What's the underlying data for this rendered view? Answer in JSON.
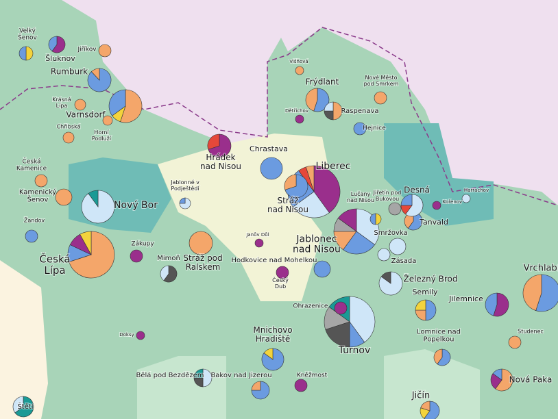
{
  "map": {
    "places": [
      {
        "name": [
          "Velký",
          "Šenov"
        ],
        "slices": [
          {
            "color": "#f3d33c",
            "value": 50
          },
          {
            "color": "#6b9be0",
            "value": 50
          }
        ]
      },
      {
        "name": [
          "Šluknov"
        ],
        "slices": [
          {
            "color": "#9a2f8c",
            "value": 60
          },
          {
            "color": "#6b9be0",
            "value": 40
          }
        ]
      },
      {
        "name": [
          "Jiříkov"
        ],
        "slices": [
          {
            "color": "#f4a66a",
            "value": 100
          }
        ]
      },
      {
        "name": [
          "Rumburk"
        ],
        "slices": [
          {
            "color": "#6b9be0",
            "value": 88
          },
          {
            "color": "#f4a66a",
            "value": 12
          }
        ]
      },
      {
        "name": [
          "Krásná",
          "Lípa"
        ],
        "slices": [
          {
            "color": "#f4a66a",
            "value": 100
          }
        ]
      },
      {
        "name": [
          "Varnsdorf"
        ],
        "slices": [
          {
            "color": "#f4a66a",
            "value": 55
          },
          {
            "color": "#f3d33c",
            "value": 10
          },
          {
            "color": "#6b9be0",
            "value": 35
          }
        ]
      },
      {
        "name": [
          "Chřibská"
        ],
        "slices": [
          {
            "color": "#f4a66a",
            "value": 100
          }
        ]
      },
      {
        "name": [
          "Horní",
          "Podluží"
        ],
        "slices": [
          {
            "color": "#f4a66a",
            "value": 100
          }
        ]
      },
      {
        "name": [
          "Hrádek",
          "nad Nisou"
        ],
        "slices": [
          {
            "color": "#9a2f8c",
            "value": 70
          },
          {
            "color": "#e5483a",
            "value": 30
          }
        ]
      },
      {
        "name": [
          "Chrastava"
        ],
        "slices": [
          {
            "color": "#6b9be0",
            "value": 100
          }
        ]
      },
      {
        "name": [
          "Liberec"
        ],
        "slices": [
          {
            "color": "#9a2f8c",
            "value": 40
          },
          {
            "color": "#cfe6f8",
            "value": 25
          },
          {
            "color": "#6b9be0",
            "value": 25
          },
          {
            "color": "#e5483a",
            "value": 5
          },
          {
            "color": "#f4a66a",
            "value": 5
          }
        ]
      },
      {
        "name": [
          "Stráž",
          "nad Nisou"
        ],
        "slices": [
          {
            "color": "#6b9be0",
            "value": 70
          },
          {
            "color": "#f4a66a",
            "value": 30
          }
        ]
      },
      {
        "name": [
          "Jablonec",
          "nad Nisou"
        ],
        "slices": [
          {
            "color": "#cfe6f8",
            "value": 35
          },
          {
            "color": "#6b9be0",
            "value": 25
          },
          {
            "color": "#f4a66a",
            "value": 15
          },
          {
            "color": "#a6a6a6",
            "value": 10
          },
          {
            "color": "#9a2f8c",
            "value": 15
          }
        ]
      },
      {
        "name": [
          "Frýdlant"
        ],
        "slices": [
          {
            "color": "#6b9be0",
            "value": 55
          },
          {
            "color": "#f4a66a",
            "value": 45
          }
        ]
      },
      {
        "name": [
          "Raspenava"
        ],
        "slices": [
          {
            "color": "#f4a66a",
            "value": 50
          },
          {
            "color": "#555555",
            "value": 25
          },
          {
            "color": "#cfe6f8",
            "value": 25
          }
        ]
      },
      {
        "name": [
          "Hejnice"
        ],
        "slices": [
          {
            "color": "#6b9be0",
            "value": 100
          }
        ]
      },
      {
        "name": [
          "Nové Město",
          "pod Smrkem"
        ],
        "slices": [
          {
            "color": "#f4a66a",
            "value": 100
          }
        ]
      },
      {
        "name": [
          "Višňová"
        ],
        "slices": [
          {
            "color": "#f4a66a",
            "value": 100
          }
        ]
      },
      {
        "name": [
          "Dětřichov"
        ],
        "slices": [
          {
            "color": "#9a2f8c",
            "value": 100
          }
        ]
      },
      {
        "name": [
          "Nový Bor"
        ],
        "slices": [
          {
            "color": "#cfe6f8",
            "value": 90
          },
          {
            "color": "#1a9a95",
            "value": 10
          }
        ]
      },
      {
        "name": [
          "Česká",
          "Lípa"
        ],
        "slices": [
          {
            "color": "#f4a66a",
            "value": 70
          },
          {
            "color": "#6b9be0",
            "value": 12
          },
          {
            "color": "#9a2f8c",
            "value": 10
          },
          {
            "color": "#f3d33c",
            "value": 8
          }
        ]
      },
      {
        "name": [
          "Zákupy"
        ],
        "slices": [
          {
            "color": "#9a2f8c",
            "value": 100
          }
        ]
      },
      {
        "name": [
          "Mimoň"
        ],
        "slices": [
          {
            "color": "#555555",
            "value": 60
          },
          {
            "color": "#cfe6f8",
            "value": 40
          }
        ]
      },
      {
        "name": [
          "Stráž pod",
          "Ralskem"
        ],
        "slices": [
          {
            "color": "#f4a66a",
            "value": 100
          }
        ]
      },
      {
        "name": [
          "Turnov"
        ],
        "slices": [
          {
            "color": "#cfe6f8",
            "value": 40
          },
          {
            "color": "#6b9be0",
            "value": 10
          },
          {
            "color": "#555555",
            "value": 20
          },
          {
            "color": "#a6a6a6",
            "value": 15
          },
          {
            "color": "#1a9a95",
            "value": 15
          }
        ]
      },
      {
        "name": [
          "Mnichovo",
          "Hradiště"
        ],
        "slices": [
          {
            "color": "#6b9be0",
            "value": 85
          },
          {
            "color": "#f3d33c",
            "value": 15
          }
        ]
      },
      {
        "name": [
          "Semily"
        ],
        "slices": [
          {
            "color": "#6b9be0",
            "value": 50
          },
          {
            "color": "#f4a66a",
            "value": 25
          },
          {
            "color": "#f3d33c",
            "value": 25
          }
        ]
      },
      {
        "name": [
          "Jilemnice"
        ],
        "slices": [
          {
            "color": "#9a2f8c",
            "value": 55
          },
          {
            "color": "#6b9be0",
            "value": 45
          }
        ]
      },
      {
        "name": [
          "Vrchlabí"
        ],
        "slices": [
          {
            "color": "#6b9be0",
            "value": 55
          },
          {
            "color": "#f4a66a",
            "value": 45
          }
        ]
      },
      {
        "name": [
          "Tanvald"
        ],
        "slices": [
          {
            "color": "#6b9be0",
            "value": 60
          },
          {
            "color": "#f4a66a",
            "value": 40
          }
        ]
      },
      {
        "name": [
          "Desná"
        ],
        "slices": [
          {
            "color": "#cfe6f8",
            "value": 60
          },
          {
            "color": "#e5483a",
            "value": 15
          },
          {
            "color": "#6b9be0",
            "value": 25
          }
        ]
      },
      {
        "name": [
          "Smržovka"
        ],
        "slices": [
          {
            "color": "#cfe6f8",
            "value": 100
          }
        ]
      },
      {
        "name": [
          "Železný Brod"
        ],
        "slices": [
          {
            "color": "#cfe6f8",
            "value": 85
          },
          {
            "color": "#555555",
            "value": 15
          }
        ]
      },
      {
        "name": [
          "Hodkovice nad Mohelkou"
        ],
        "slices": [
          {
            "color": "#6b9be0",
            "value": 100
          }
        ]
      },
      {
        "name": [
          "Český",
          "Dub"
        ],
        "slices": [
          {
            "color": "#9a2f8c",
            "value": 100
          }
        ]
      },
      {
        "name": [
          "Jičín"
        ],
        "slices": [
          {
            "color": "#6b9be0",
            "value": 60
          },
          {
            "color": "#f3d33c",
            "value": 20
          },
          {
            "color": "#f4a66a",
            "value": 20
          }
        ]
      },
      {
        "name": [
          "Nová Paka"
        ],
        "slices": [
          {
            "color": "#f4a66a",
            "value": 60
          },
          {
            "color": "#9a2f8c",
            "value": 25
          },
          {
            "color": "#6b9be0",
            "value": 15
          }
        ]
      },
      {
        "name": [
          "Bělá pod Bezdězem"
        ],
        "slices": [
          {
            "color": "#cfe6f8",
            "value": 50
          },
          {
            "color": "#555555",
            "value": 25
          },
          {
            "color": "#1a9a95",
            "value": 25
          }
        ]
      },
      {
        "name": [
          "Bakov nad Jizerou"
        ],
        "slices": [
          {
            "color": "#6b9be0",
            "value": 75
          },
          {
            "color": "#f4a66a",
            "value": 25
          }
        ]
      },
      {
        "name": [
          "Kněžmost"
        ],
        "slices": [
          {
            "color": "#9a2f8c",
            "value": 100
          }
        ]
      },
      {
        "name": [
          "Lomnice nad",
          "Popelkou"
        ],
        "slices": [
          {
            "color": "#6b9be0",
            "value": 60
          },
          {
            "color": "#f4a66a",
            "value": 40
          }
        ]
      },
      {
        "name": [
          "Česká",
          "Kamenice"
        ],
        "slices": [
          {
            "color": "#f4a66a",
            "value": 100
          }
        ]
      },
      {
        "name": [
          "Kamenický",
          "Šenov"
        ],
        "slices": [
          {
            "color": "#f4a66a",
            "value": 100
          }
        ]
      },
      {
        "name": [
          "Žandov"
        ],
        "slices": [
          {
            "color": "#6b9be0",
            "value": 100
          }
        ]
      },
      {
        "name": [
          "Jablonné v",
          "Podještědí"
        ],
        "slices": [
          {
            "color": "#cfe6f8",
            "value": 75
          },
          {
            "color": "#6b9be0",
            "value": 25
          }
        ]
      },
      {
        "name": [
          "Štětí"
        ],
        "slices": [
          {
            "color": "#1a9a95",
            "value": 65
          },
          {
            "color": "#cfe6f8",
            "value": 35
          }
        ]
      },
      {
        "name": [
          "Ohrazenice"
        ],
        "slices": [
          {
            "color": "#9a2f8c",
            "value": 100
          }
        ]
      },
      {
        "name": [
          "Lučany",
          "nad Nisou"
        ],
        "slices": [
          {
            "color": "#f3d33c",
            "value": 50
          },
          {
            "color": "#6b9be0",
            "value": 50
          }
        ]
      },
      {
        "name": [
          "Jiřetín pod",
          "Bukovou"
        ],
        "slices": [
          {
            "color": "#a6a6a6",
            "value": 100
          }
        ]
      },
      {
        "name": [
          "Harrachov"
        ],
        "slices": [
          {
            "color": "#cfe6f8",
            "value": 100
          }
        ]
      },
      {
        "name": [
          "Kořenov"
        ],
        "slices": [
          {
            "color": "#9a2f8c",
            "value": 100
          }
        ]
      },
      {
        "name": [
          "Studenec"
        ],
        "slices": [
          {
            "color": "#f4a66a",
            "value": 100
          }
        ]
      },
      {
        "name": [
          "Doksy"
        ],
        "slices": [
          {
            "color": "#9a2f8c",
            "value": 100
          }
        ]
      },
      {
        "name": [
          "Janův Důl"
        ],
        "slices": [
          {
            "color": "#9a2f8c",
            "value": 100
          }
        ]
      },
      {
        "name": [
          "Zásada"
        ],
        "slices": [
          {
            "color": "#cfe6f8",
            "value": 100
          }
        ]
      }
    ]
  }
}
